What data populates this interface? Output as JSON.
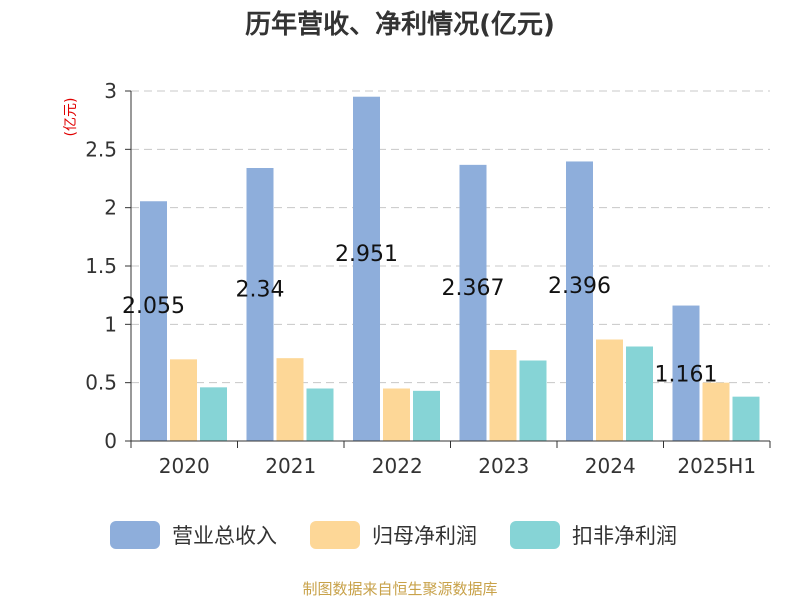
{
  "chart_data": {
    "type": "bar",
    "title": "历年营收、净利情况(亿元)",
    "ylabel": "(亿元)",
    "xlabel": "",
    "ylim": [
      0,
      3
    ],
    "yticks": [
      "0",
      "0.5",
      "1",
      "1.5",
      "2",
      "2.5",
      "3"
    ],
    "grid": true,
    "legend_position": "bottom",
    "categories": [
      "2020",
      "2021",
      "2022",
      "2023",
      "2024",
      "2025H1"
    ],
    "series": [
      {
        "name": "营业总收入",
        "color": "#8eaedb",
        "values": [
          2.055,
          2.34,
          2.951,
          2.367,
          2.396,
          1.161
        ],
        "labels": [
          "2.055",
          "2.34",
          "2.951",
          "2.367",
          "2.396",
          "1.161"
        ]
      },
      {
        "name": "归母净利润",
        "color": "#fdd797",
        "values": [
          0.7,
          0.71,
          0.45,
          0.78,
          0.87,
          0.5
        ]
      },
      {
        "name": "扣非净利润",
        "color": "#86d4d6",
        "values": [
          0.46,
          0.45,
          0.43,
          0.69,
          0.81,
          0.38
        ]
      }
    ]
  },
  "source": "制图数据来自恒生聚源数据库"
}
